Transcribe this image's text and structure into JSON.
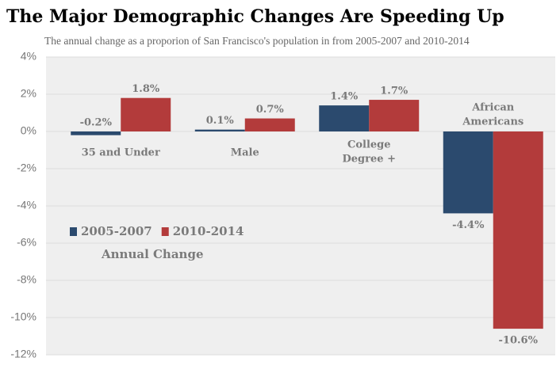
{
  "chart_data": {
    "type": "bar",
    "title": "The Major Demographic Changes Are Speeding Up",
    "subtitle": "The annual change as a proporion of San Francisco's population in from 2005-2007 and 2010-2014",
    "categories": [
      [
        "35 and Under"
      ],
      [
        "Male"
      ],
      [
        "College",
        "Degree +"
      ],
      [
        "African",
        "Americans"
      ]
    ],
    "series": [
      {
        "name": "2005-2007",
        "color": "#2b4a6e",
        "values": [
          -0.2,
          0.1,
          1.4,
          -4.4
        ],
        "value_labels": [
          "-0.2%",
          "0.1%",
          "1.4%",
          "-4.4%"
        ]
      },
      {
        "name": "2010-2014",
        "color": "#b33b3b",
        "values": [
          1.8,
          0.7,
          1.7,
          -10.6
        ],
        "value_labels": [
          "1.8%",
          "0.7%",
          "1.7%",
          "-10.6%"
        ]
      }
    ],
    "legend_title": "Annual Change",
    "ylim": [
      -12,
      4
    ],
    "yticks": [
      {
        "value": -12,
        "label": "-12%"
      },
      {
        "value": -10,
        "label": "-10%"
      },
      {
        "value": -8,
        "label": "-8%"
      },
      {
        "value": -6,
        "label": "-6%"
      },
      {
        "value": -4,
        "label": "-4%"
      },
      {
        "value": -2,
        "label": "-2%"
      },
      {
        "value": 0,
        "label": "0%"
      },
      {
        "value": 2,
        "label": "2%"
      },
      {
        "value": 4,
        "label": "4%"
      }
    ],
    "grid": true
  }
}
